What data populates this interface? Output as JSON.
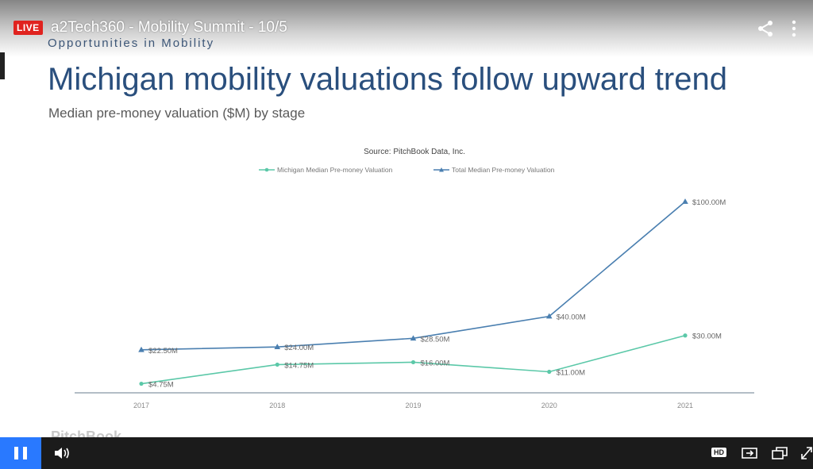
{
  "player": {
    "live_label": "LIVE",
    "stream_title": "a2Tech360 - Mobility Summit - 10/5",
    "hd_label": "HD"
  },
  "slide": {
    "header": "Opportunities in Mobility",
    "title": "Michigan mobility valuations follow upward trend",
    "subtitle": "Median pre-money valuation ($M) by stage",
    "watermark": "PitchBook"
  },
  "colors": {
    "michigan": "#5bc8a8",
    "total": "#4a7fb0",
    "live": "#e0231f",
    "play": "#2979ff"
  },
  "chart_data": {
    "type": "line",
    "title": "Source: PitchBook Data, Inc.",
    "categories": [
      "2017",
      "2018",
      "2019",
      "2020",
      "2021"
    ],
    "series": [
      {
        "name": "Michigan Median Pre-money Valuation",
        "values": [
          4.75,
          14.75,
          16.0,
          11.0,
          30.0
        ],
        "labels": [
          "$4.75M",
          "$14.75M",
          "$16.00M",
          "$11.00M",
          "$30.00M"
        ]
      },
      {
        "name": "Total Median Pre-money Valuation",
        "values": [
          22.5,
          24.0,
          28.5,
          40.0,
          100.0
        ],
        "labels": [
          "$22.50M",
          "$24.00M",
          "$28.50M",
          "$40.00M",
          "$100.00M"
        ]
      }
    ],
    "ylim": [
      0,
      110
    ],
    "legend_position": "top",
    "grid": false
  }
}
